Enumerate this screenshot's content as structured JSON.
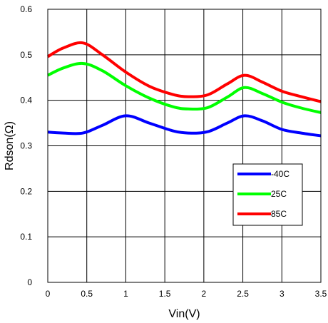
{
  "chart_data": {
    "type": "line",
    "title": "",
    "xlabel": "Vin(V)",
    "ylabel": "Rdson(Ω)",
    "xlim": [
      0,
      3.5
    ],
    "ylim": [
      0,
      0.6
    ],
    "xticks": [
      "0",
      "0.5",
      "1",
      "1.5",
      "2",
      "2.5",
      "3",
      "3.5"
    ],
    "yticks": [
      "0",
      "0.1",
      "0.2",
      "0.3",
      "0.4",
      "0.5",
      "0.6"
    ],
    "grid": true,
    "legend_position": "center-right",
    "series": [
      {
        "name": "-40C",
        "color": "#0000ff",
        "x": [
          0,
          0.2,
          0.45,
          0.7,
          1.0,
          1.3,
          1.6,
          1.8,
          2.05,
          2.3,
          2.52,
          2.75,
          3.0,
          3.25,
          3.5
        ],
        "y": [
          0.33,
          0.328,
          0.328,
          0.345,
          0.366,
          0.35,
          0.333,
          0.328,
          0.331,
          0.35,
          0.366,
          0.355,
          0.336,
          0.328,
          0.322
        ]
      },
      {
        "name": "25C",
        "color": "#00ff00",
        "x": [
          0,
          0.2,
          0.45,
          0.7,
          1.0,
          1.3,
          1.6,
          1.8,
          2.05,
          2.3,
          2.52,
          2.75,
          3.0,
          3.25,
          3.5
        ],
        "y": [
          0.455,
          0.471,
          0.481,
          0.465,
          0.432,
          0.405,
          0.386,
          0.381,
          0.384,
          0.407,
          0.428,
          0.415,
          0.396,
          0.383,
          0.373
        ]
      },
      {
        "name": "85C",
        "color": "#ff0000",
        "x": [
          0,
          0.2,
          0.45,
          0.7,
          1.0,
          1.3,
          1.6,
          1.8,
          2.05,
          2.3,
          2.52,
          2.75,
          3.0,
          3.25,
          3.5
        ],
        "y": [
          0.496,
          0.515,
          0.526,
          0.5,
          0.462,
          0.431,
          0.413,
          0.408,
          0.412,
          0.436,
          0.455,
          0.44,
          0.42,
          0.408,
          0.397
        ]
      }
    ]
  }
}
